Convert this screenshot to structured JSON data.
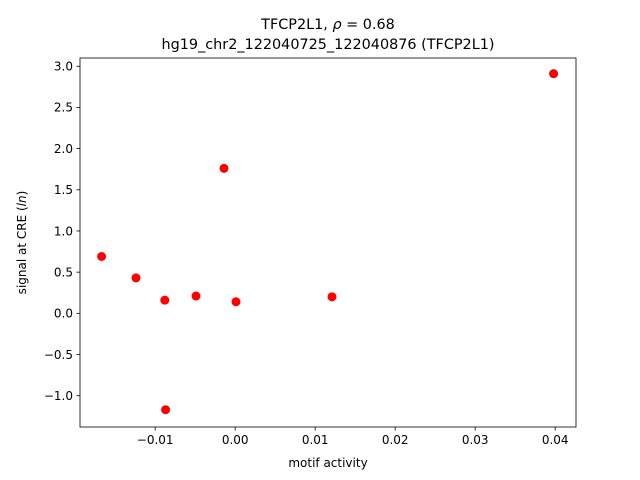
{
  "chart_data": {
    "type": "scatter",
    "title_line1_prefix": "TFCP2L1, ",
    "title_line1_rho": "ρ",
    "title_line1_value": " = 0.68",
    "title_line2": "hg19_chr2_122040725_122040876 (TFCP2L1)",
    "xlabel": "motif activity",
    "ylabel_prefix": "signal at CRE (",
    "ylabel_italic": "ln",
    "ylabel_suffix": ")",
    "xlim": [
      -0.0194,
      0.0426
    ],
    "ylim": [
      -1.38,
      3.1
    ],
    "xticks": [
      -0.01,
      0.0,
      0.01,
      0.02,
      0.03,
      0.04
    ],
    "xtick_labels": [
      "−0.01",
      "0.00",
      "0.01",
      "0.02",
      "0.03",
      "0.04"
    ],
    "yticks": [
      -1.0,
      -0.5,
      0.0,
      0.5,
      1.0,
      1.5,
      2.0,
      2.5,
      3.0
    ],
    "ytick_labels": [
      "−1.0",
      "−0.5",
      "0.0",
      "0.5",
      "1.0",
      "1.5",
      "2.0",
      "2.5",
      "3.0"
    ],
    "marker_color": "#ff0000",
    "points": [
      {
        "x": -0.0167,
        "y": 0.69
      },
      {
        "x": -0.0124,
        "y": 0.43
      },
      {
        "x": -0.0088,
        "y": 0.16
      },
      {
        "x": -0.0087,
        "y": -1.17
      },
      {
        "x": -0.0049,
        "y": 0.21
      },
      {
        "x": -0.0014,
        "y": 1.76
      },
      {
        "x": 0.0001,
        "y": 0.14
      },
      {
        "x": 0.0121,
        "y": 0.2
      },
      {
        "x": 0.0398,
        "y": 2.91
      }
    ]
  }
}
